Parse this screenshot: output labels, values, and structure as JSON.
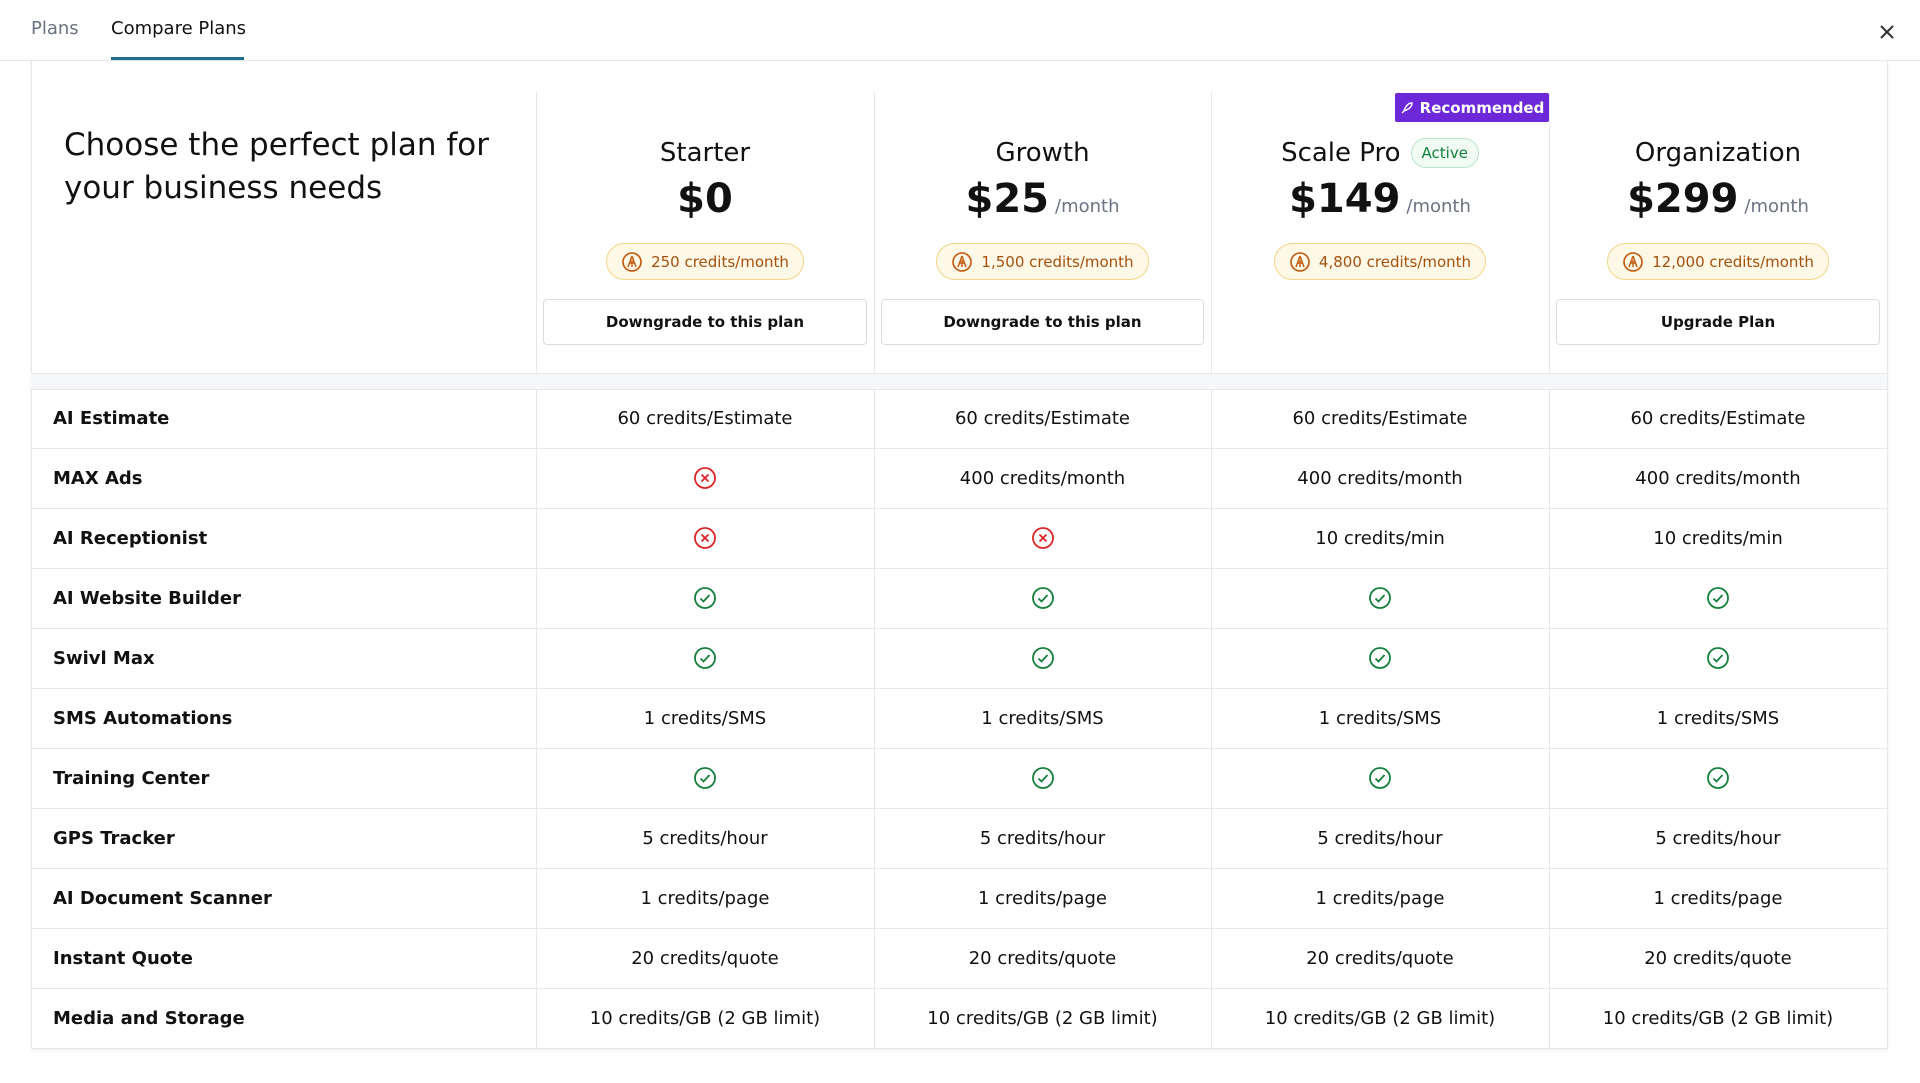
{
  "tabs": [
    "Plans",
    "Compare Plans"
  ],
  "heading": "Choose the perfect plan for your business needs",
  "plans": [
    {
      "name": "Starter",
      "price": "$0",
      "credits": "250 credits/month",
      "button": "Downgrade to this plan"
    },
    {
      "name": "Growth",
      "price": "$25",
      "period": "/month",
      "credits": "1,500 credits/month",
      "button": "Downgrade to this plan"
    },
    {
      "name": "Scale Pro",
      "badge": "Recommended",
      "status": "Active",
      "price": "$149",
      "period": "/month",
      "credits": "4,800 credits/month"
    },
    {
      "name": "Organization",
      "price": "$299",
      "period": "/month",
      "credits": "12,000 credits/month",
      "button": "Upgrade Plan"
    }
  ],
  "features": [
    {
      "name": "AI Estimate",
      "values": [
        "60 credits/Estimate",
        "60 credits/Estimate",
        "60 credits/Estimate",
        "60 credits/Estimate"
      ]
    },
    {
      "name": "MAX Ads",
      "values": [
        false,
        "400 credits/month",
        "400 credits/month",
        "400 credits/month"
      ]
    },
    {
      "name": "AI Receptionist",
      "values": [
        false,
        false,
        "10 credits/min",
        "10 credits/min"
      ]
    },
    {
      "name": "AI Website Builder",
      "values": [
        true,
        true,
        true,
        true
      ]
    },
    {
      "name": "Swivl Max",
      "values": [
        true,
        true,
        true,
        true
      ]
    },
    {
      "name": "SMS Automations",
      "values": [
        "1 credits/SMS",
        "1 credits/SMS",
        "1 credits/SMS",
        "1 credits/SMS"
      ]
    },
    {
      "name": "Training Center",
      "values": [
        true,
        true,
        true,
        true
      ]
    },
    {
      "name": "GPS Tracker",
      "values": [
        "5 credits/hour",
        "5 credits/hour",
        "5 credits/hour",
        "5 credits/hour"
      ]
    },
    {
      "name": "AI Document Scanner",
      "values": [
        "1 credits/page",
        "1 credits/page",
        "1 credits/page",
        "1 credits/page"
      ]
    },
    {
      "name": "Instant Quote",
      "values": [
        "20 credits/quote",
        "20 credits/quote",
        "20 credits/quote",
        "20 credits/quote"
      ]
    },
    {
      "name": "Media and Storage",
      "values": [
        "10 credits/GB (2 GB limit)",
        "10 credits/GB (2 GB limit)",
        "10 credits/GB (2 GB limit)",
        "10 credits/GB (2 GB limit)"
      ]
    }
  ]
}
